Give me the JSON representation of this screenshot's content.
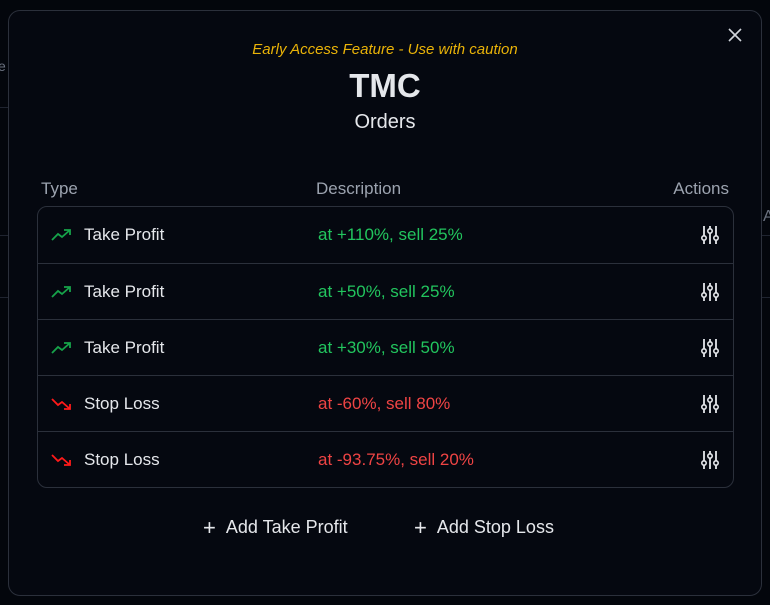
{
  "background": {
    "left_fragment": "e",
    "right_fragment": "A"
  },
  "modal": {
    "warning": "Early Access Feature - Use with caution",
    "title": "TMC",
    "subtitle": "Orders",
    "columns": {
      "type": "Type",
      "description": "Description",
      "actions": "Actions"
    },
    "orders": [
      {
        "type": "Take Profit",
        "description": "at +110%, sell 25%",
        "kind": "take-profit",
        "icon": "trending-up-icon"
      },
      {
        "type": "Take Profit",
        "description": "at +50%, sell 25%",
        "kind": "take-profit",
        "icon": "trending-up-icon"
      },
      {
        "type": "Take Profit",
        "description": "at +30%, sell 50%",
        "kind": "take-profit",
        "icon": "trending-up-icon"
      },
      {
        "type": "Stop Loss",
        "description": "at -60%, sell 80%",
        "kind": "stop-loss",
        "icon": "trending-down-icon"
      },
      {
        "type": "Stop Loss",
        "description": "at -93.75%, sell 20%",
        "kind": "stop-loss",
        "icon": "trending-down-icon"
      }
    ],
    "add_take_profit": "Add Take Profit",
    "add_stop_loss": "Add Stop Loss"
  },
  "colors": {
    "profit": "#22c55e",
    "loss": "#ef4444",
    "warning": "#eab308",
    "profit_icon": "#16a34a",
    "loss_icon": "#ff1a1a"
  }
}
